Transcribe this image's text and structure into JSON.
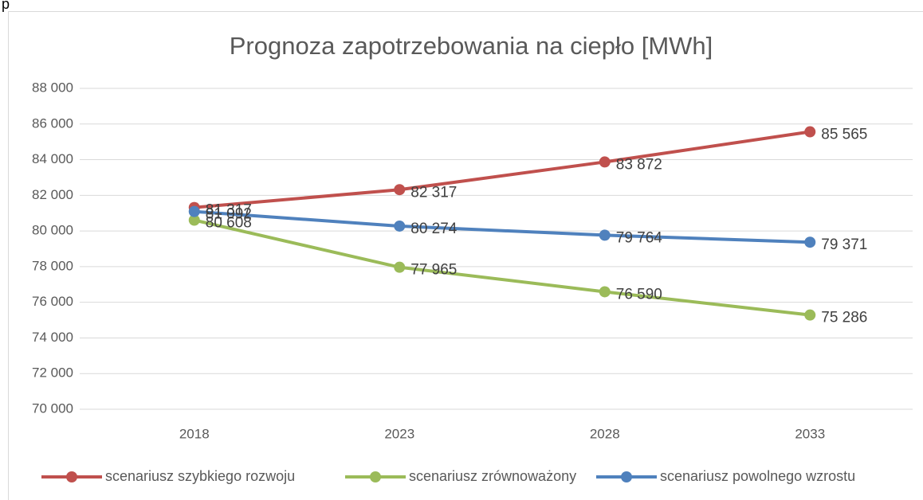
{
  "fragment": "p",
  "chart_data": {
    "type": "line",
    "title": "Prognoza zapotrzebowania na ciepło [MWh]",
    "categories": [
      "2018",
      "2023",
      "2028",
      "2033"
    ],
    "series": [
      {
        "name": "scenariusz szybkiego rozwoju",
        "color": "#c0504d",
        "values": [
          81317,
          82317,
          83872,
          85565
        ],
        "value_labels": [
          "81 317",
          "82 317",
          "83 872",
          "85 565"
        ]
      },
      {
        "name": "scenariusz zrównoważony",
        "color": "#9bbb59",
        "values": [
          80608,
          77965,
          76590,
          75286
        ],
        "value_labels": [
          "80 608",
          "77 965",
          "76 590",
          "75 286"
        ]
      },
      {
        "name": "scenariusz powolnego wzrostu",
        "color": "#4f81bd",
        "values": [
          81092,
          80274,
          79764,
          79371
        ],
        "value_labels": [
          "81 092",
          "80 274",
          "79 764",
          "79 371"
        ]
      }
    ],
    "ylim": [
      70000,
      88000
    ],
    "yticks": [
      {
        "value": 70000,
        "label": "70 000"
      },
      {
        "value": 72000,
        "label": "72 000"
      },
      {
        "value": 74000,
        "label": "74 000"
      },
      {
        "value": 76000,
        "label": "76 000"
      },
      {
        "value": 78000,
        "label": "78 000"
      },
      {
        "value": 80000,
        "label": "80 000"
      },
      {
        "value": 82000,
        "label": "82 000"
      },
      {
        "value": 84000,
        "label": "84 000"
      },
      {
        "value": 86000,
        "label": "86 000"
      },
      {
        "value": 88000,
        "label": "88 000"
      }
    ],
    "grid": true,
    "legend": "bottom"
  }
}
